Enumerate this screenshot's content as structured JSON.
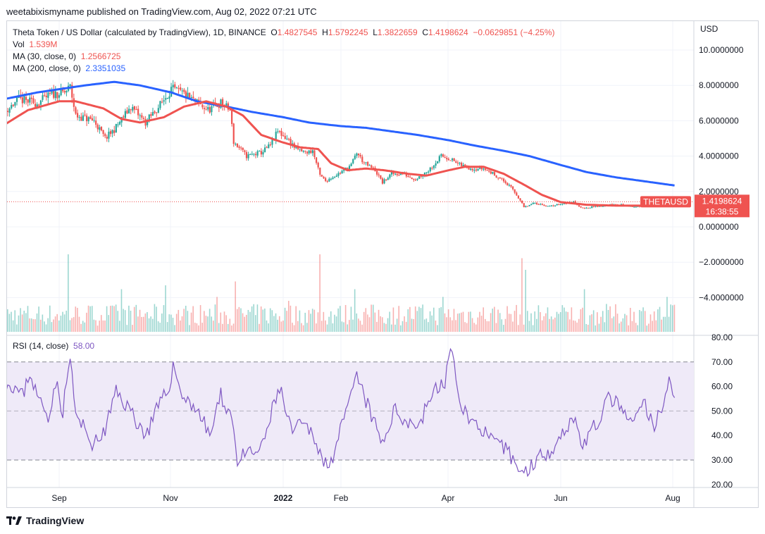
{
  "caption": "weetabixismyname published on TradingView.com, Aug 02, 2022 07:21 UTC",
  "legend": {
    "title": "Theta Token / US Dollar (calculated by TradingView), 1D, BINANCE",
    "o_label": "O",
    "o_value": "1.4827545",
    "h_label": "H",
    "h_value": "1.5792245",
    "l_label": "L",
    "l_value": "1.3822659",
    "c_label": "C",
    "c_value": "1.4198624",
    "change": "−0.0629851 (−4.25%)",
    "vol_label": "Vol",
    "vol_value": "1.539M",
    "ma30_label": "MA (30, close, 0)",
    "ma30_value": "1.2566725",
    "ma200_label": "MA (200, close, 0)",
    "ma200_value": "2.3351035"
  },
  "price_axis": {
    "currency": "USD",
    "tick_labels": [
      "10.0000000",
      "8.0000000",
      "6.0000000",
      "4.0000000",
      "2.0000000",
      "0.0000000",
      "−2.0000000",
      "−4.0000000"
    ],
    "last_price_label": "1.4198624",
    "countdown": "16:38:55",
    "symbol_tag": "THETAUSD"
  },
  "rsi": {
    "label": "RSI (14, close)",
    "value": "58.00",
    "tick_labels": [
      "80.00",
      "70.00",
      "60.00",
      "50.00",
      "40.00",
      "30.00",
      "20.00"
    ]
  },
  "time_axis": {
    "labels": [
      "Sep",
      "Nov",
      "2022",
      "Feb",
      "Apr",
      "Jun",
      "Aug"
    ]
  },
  "footer": {
    "brand": "TradingView"
  },
  "colors": {
    "up": "#26a69a",
    "down": "#ef5350",
    "ma30": "#ef5350",
    "ma200": "#2962ff",
    "rsi": "#7e57c2",
    "rsi_band": "#efeaf8"
  },
  "chart_data": {
    "type": "candlestick",
    "symbol": "THETAUSD",
    "interval": "1D",
    "x_range": [
      "2021-08-01",
      "2022-08-02"
    ],
    "price_axis_range": [
      -5.5,
      11.0
    ],
    "price_ticks": [
      10,
      8,
      6,
      4,
      2,
      0,
      -2,
      -4
    ],
    "close_anchors": [
      [
        "2021-08-01",
        6.4
      ],
      [
        "2021-08-10",
        7.2
      ],
      [
        "2021-08-20",
        7.0
      ],
      [
        "2021-08-28",
        7.5
      ],
      [
        "2021-09-04",
        7.6
      ],
      [
        "2021-09-07",
        7.9
      ],
      [
        "2021-09-10",
        6.3
      ],
      [
        "2021-09-20",
        6.0
      ],
      [
        "2021-09-26",
        5.0
      ],
      [
        "2021-10-01",
        5.5
      ],
      [
        "2021-10-10",
        6.8
      ],
      [
        "2021-10-18",
        5.9
      ],
      [
        "2021-10-26",
        6.9
      ],
      [
        "2021-11-01",
        7.8
      ],
      [
        "2021-11-08",
        7.5
      ],
      [
        "2021-11-15",
        7.0
      ],
      [
        "2021-11-21",
        6.6
      ],
      [
        "2021-11-28",
        7.0
      ],
      [
        "2021-12-03",
        6.6
      ],
      [
        "2021-12-05",
        4.8
      ],
      [
        "2021-12-12",
        4.0
      ],
      [
        "2021-12-20",
        4.2
      ],
      [
        "2021-12-25",
        4.6
      ],
      [
        "2021-12-29",
        5.4
      ],
      [
        "2022-01-03",
        5.0
      ],
      [
        "2022-01-08",
        4.4
      ],
      [
        "2022-01-13",
        4.2
      ],
      [
        "2022-01-17",
        4.3
      ],
      [
        "2022-01-21",
        2.9
      ],
      [
        "2022-01-24",
        2.6
      ],
      [
        "2022-01-31",
        3.0
      ],
      [
        "2022-02-07",
        3.5
      ],
      [
        "2022-02-10",
        4.2
      ],
      [
        "2022-02-14",
        3.6
      ],
      [
        "2022-02-20",
        3.2
      ],
      [
        "2022-02-24",
        2.5
      ],
      [
        "2022-03-01",
        3.0
      ],
      [
        "2022-03-07",
        3.0
      ],
      [
        "2022-03-14",
        2.7
      ],
      [
        "2022-03-21",
        3.2
      ],
      [
        "2022-03-28",
        4.0
      ],
      [
        "2022-04-01",
        3.9
      ],
      [
        "2022-04-07",
        3.5
      ],
      [
        "2022-04-14",
        3.3
      ],
      [
        "2022-04-20",
        3.3
      ],
      [
        "2022-04-27",
        2.9
      ],
      [
        "2022-05-02",
        2.5
      ],
      [
        "2022-05-06",
        2.1
      ],
      [
        "2022-05-10",
        1.5
      ],
      [
        "2022-05-12",
        1.1
      ],
      [
        "2022-05-18",
        1.35
      ],
      [
        "2022-05-26",
        1.15
      ],
      [
        "2022-06-01",
        1.3
      ],
      [
        "2022-06-08",
        1.4
      ],
      [
        "2022-06-13",
        1.05
      ],
      [
        "2022-06-20",
        1.15
      ],
      [
        "2022-06-28",
        1.25
      ],
      [
        "2022-07-05",
        1.25
      ],
      [
        "2022-07-12",
        1.1
      ],
      [
        "2022-07-18",
        1.3
      ],
      [
        "2022-07-26",
        1.3
      ],
      [
        "2022-07-31",
        1.5
      ],
      [
        "2022-08-02",
        1.42
      ]
    ],
    "ma30_anchors": [
      [
        "2021-08-01",
        5.7
      ],
      [
        "2021-08-15",
        6.6
      ],
      [
        "2021-09-01",
        7.1
      ],
      [
        "2021-09-10",
        7.1
      ],
      [
        "2021-09-25",
        6.7
      ],
      [
        "2021-10-05",
        6.1
      ],
      [
        "2021-10-15",
        5.9
      ],
      [
        "2021-10-28",
        6.2
      ],
      [
        "2021-11-08",
        6.8
      ],
      [
        "2021-11-20",
        7.1
      ],
      [
        "2021-12-01",
        6.8
      ],
      [
        "2021-12-10",
        6.3
      ],
      [
        "2021-12-20",
        5.2
      ],
      [
        "2021-12-31",
        4.8
      ],
      [
        "2022-01-10",
        4.5
      ],
      [
        "2022-01-20",
        4.4
      ],
      [
        "2022-01-27",
        3.6
      ],
      [
        "2022-02-05",
        3.2
      ],
      [
        "2022-02-15",
        3.3
      ],
      [
        "2022-02-25",
        3.2
      ],
      [
        "2022-03-10",
        3.0
      ],
      [
        "2022-03-20",
        2.9
      ],
      [
        "2022-04-01",
        3.2
      ],
      [
        "2022-04-10",
        3.4
      ],
      [
        "2022-04-20",
        3.4
      ],
      [
        "2022-05-01",
        3.0
      ],
      [
        "2022-05-10",
        2.5
      ],
      [
        "2022-05-22",
        1.8
      ],
      [
        "2022-06-01",
        1.4
      ],
      [
        "2022-06-15",
        1.25
      ],
      [
        "2022-07-01",
        1.2
      ],
      [
        "2022-07-15",
        1.2
      ],
      [
        "2022-08-02",
        1.26
      ]
    ],
    "ma200_anchors": [
      [
        "2021-08-01",
        7.2
      ],
      [
        "2021-08-20",
        7.6
      ],
      [
        "2021-09-15",
        8.0
      ],
      [
        "2021-10-01",
        8.2
      ],
      [
        "2021-10-15",
        8.0
      ],
      [
        "2021-11-01",
        7.6
      ],
      [
        "2021-11-15",
        7.1
      ],
      [
        "2021-12-01",
        6.8
      ],
      [
        "2021-12-15",
        6.5
      ],
      [
        "2022-01-01",
        6.2
      ],
      [
        "2022-01-15",
        5.9
      ],
      [
        "2022-02-01",
        5.7
      ],
      [
        "2022-02-15",
        5.6
      ],
      [
        "2022-03-01",
        5.4
      ],
      [
        "2022-03-15",
        5.2
      ],
      [
        "2022-04-01",
        4.9
      ],
      [
        "2022-04-15",
        4.6
      ],
      [
        "2022-05-01",
        4.3
      ],
      [
        "2022-05-15",
        4.0
      ],
      [
        "2022-06-01",
        3.5
      ],
      [
        "2022-06-15",
        3.1
      ],
      [
        "2022-07-01",
        2.8
      ],
      [
        "2022-07-15",
        2.6
      ],
      [
        "2022-08-02",
        2.34
      ]
    ],
    "volume_spikes": [
      [
        "2021-09-06",
        1.0
      ],
      [
        "2021-10-05",
        0.55
      ],
      [
        "2021-10-29",
        0.6
      ],
      [
        "2021-11-26",
        0.45
      ],
      [
        "2021-12-06",
        0.65
      ],
      [
        "2022-01-04",
        0.4
      ],
      [
        "2022-01-21",
        1.0
      ],
      [
        "2022-02-09",
        0.55
      ],
      [
        "2022-03-29",
        0.45
      ],
      [
        "2022-05-11",
        0.95
      ],
      [
        "2022-05-13",
        0.8
      ],
      [
        "2022-06-14",
        0.55
      ],
      [
        "2022-07-29",
        0.45
      ]
    ],
    "rsi_period": 14,
    "rsi_range": [
      18,
      82
    ],
    "rsi_band": [
      30,
      70
    ],
    "rsi_ticks": [
      80,
      70,
      60,
      50,
      40,
      30,
      20
    ],
    "rsi_anchors": [
      [
        "2021-08-01",
        55
      ],
      [
        "2021-08-05",
        62
      ],
      [
        "2021-08-12",
        56
      ],
      [
        "2021-08-16",
        66
      ],
      [
        "2021-08-20",
        56
      ],
      [
        "2021-08-26",
        48
      ],
      [
        "2021-08-30",
        62
      ],
      [
        "2021-09-03",
        50
      ],
      [
        "2021-09-07",
        72
      ],
      [
        "2021-09-10",
        48
      ],
      [
        "2021-09-20",
        36
      ],
      [
        "2021-09-26",
        42
      ],
      [
        "2021-10-02",
        58
      ],
      [
        "2021-10-10",
        50
      ],
      [
        "2021-10-18",
        40
      ],
      [
        "2021-10-24",
        50
      ],
      [
        "2021-10-30",
        58
      ],
      [
        "2021-11-02",
        68
      ],
      [
        "2021-11-08",
        55
      ],
      [
        "2021-11-14",
        52
      ],
      [
        "2021-11-22",
        40
      ],
      [
        "2021-11-28",
        56
      ],
      [
        "2021-12-04",
        48
      ],
      [
        "2021-12-07",
        30
      ],
      [
        "2021-12-12",
        32
      ],
      [
        "2021-12-20",
        34
      ],
      [
        "2021-12-26",
        50
      ],
      [
        "2021-12-30",
        60
      ],
      [
        "2022-01-05",
        42
      ],
      [
        "2022-01-12",
        44
      ],
      [
        "2022-01-18",
        40
      ],
      [
        "2022-01-23",
        28
      ],
      [
        "2022-01-28",
        32
      ],
      [
        "2022-02-04",
        48
      ],
      [
        "2022-02-10",
        64
      ],
      [
        "2022-02-16",
        52
      ],
      [
        "2022-02-24",
        36
      ],
      [
        "2022-03-02",
        50
      ],
      [
        "2022-03-10",
        46
      ],
      [
        "2022-03-16",
        44
      ],
      [
        "2022-03-22",
        56
      ],
      [
        "2022-03-30",
        62
      ],
      [
        "2022-04-02",
        76
      ],
      [
        "2022-04-06",
        58
      ],
      [
        "2022-04-12",
        46
      ],
      [
        "2022-04-18",
        44
      ],
      [
        "2022-04-26",
        36
      ],
      [
        "2022-05-03",
        34
      ],
      [
        "2022-05-08",
        28
      ],
      [
        "2022-05-12",
        24
      ],
      [
        "2022-05-18",
        30
      ],
      [
        "2022-05-26",
        34
      ],
      [
        "2022-06-03",
        42
      ],
      [
        "2022-06-08",
        48
      ],
      [
        "2022-06-13",
        36
      ],
      [
        "2022-06-20",
        44
      ],
      [
        "2022-06-28",
        56
      ],
      [
        "2022-07-04",
        50
      ],
      [
        "2022-07-10",
        44
      ],
      [
        "2022-07-16",
        54
      ],
      [
        "2022-07-22",
        42
      ],
      [
        "2022-07-28",
        58
      ],
      [
        "2022-07-30",
        62
      ],
      [
        "2022-08-02",
        58
      ]
    ]
  }
}
